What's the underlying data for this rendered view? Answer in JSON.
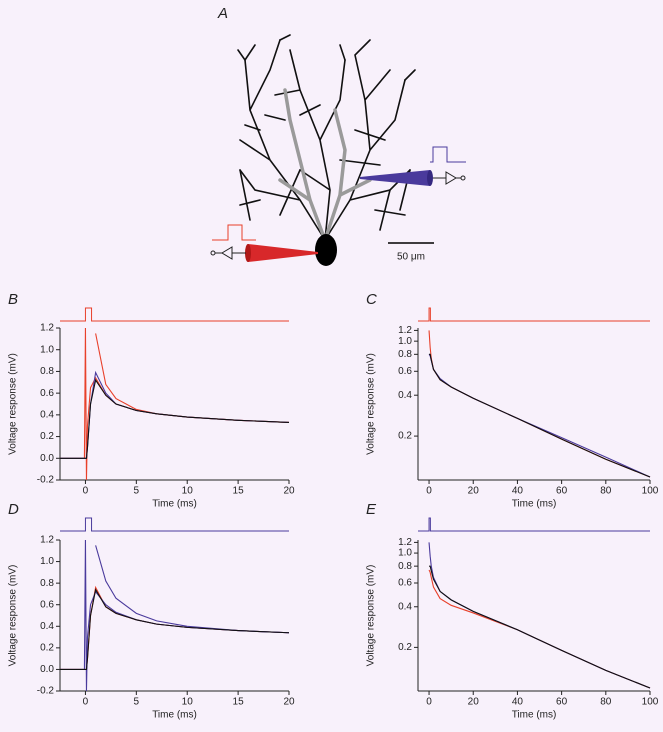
{
  "panel_a": {
    "label": "A",
    "scale_bar": "50 μm"
  },
  "chart_data": [
    {
      "type": "line",
      "label": "B",
      "ylabel": "Voltage response (mV)",
      "xlabel": "Time (ms)",
      "xlim": [
        -2.5,
        20
      ],
      "ylim": [
        -0.2,
        1.2
      ],
      "xticks": [
        0,
        5,
        10,
        15,
        20
      ],
      "yticks": [
        -0.2,
        {
          "value": 0,
          "label": "0.0"
        },
        0.2,
        0.4,
        0.6,
        0.8,
        {
          "value": 1,
          "label": "1.0"
        },
        1.2
      ],
      "log_y": false,
      "stimulus": {
        "color": "#e8402a",
        "x": [
          -2.5,
          0,
          0,
          0.6,
          0.6,
          20
        ],
        "values": [
          0,
          0,
          1,
          1,
          0,
          0
        ]
      },
      "x": [
        -2.5,
        -0.1,
        0,
        0.1,
        0.2,
        0.5,
        1,
        2,
        3,
        5,
        7,
        10,
        15,
        20
      ],
      "series": [
        {
          "color": "#e8402a",
          "values": [
            0,
            0,
            1.2,
            -0.2,
            0.3,
            0.65,
            0.74,
            0.58,
            0.5,
            0.44,
            0.41,
            0.38,
            0.35,
            0.33
          ]
        },
        {
          "color": "#e8402a",
          "values": [
            null,
            null,
            null,
            null,
            null,
            null,
            1.15,
            0.68,
            0.55,
            0.45,
            0.41,
            0.38,
            0.35,
            0.33
          ]
        },
        {
          "color": "#4a3a9c",
          "values": [
            0,
            0,
            0,
            0,
            0.1,
            0.5,
            0.79,
            0.6,
            0.5,
            0.44,
            0.41,
            0.38,
            0.35,
            0.33
          ]
        },
        {
          "color": "#111111",
          "values": [
            0,
            0,
            0,
            0,
            0.1,
            0.5,
            0.72,
            0.58,
            0.5,
            0.44,
            0.41,
            0.38,
            0.35,
            0.33
          ]
        }
      ]
    },
    {
      "type": "line",
      "label": "C",
      "ylabel": "Voltage response (mV)",
      "xlabel": "Time (ms)",
      "xlim": [
        -5,
        100
      ],
      "ylim": [
        0.095,
        1.25
      ],
      "xticks": [
        0,
        20,
        40,
        60,
        80,
        100
      ],
      "yticks": [
        0.2,
        0.4,
        0.6,
        0.8,
        {
          "value": 1,
          "label": "1.0"
        },
        1.2
      ],
      "log_y": true,
      "stimulus": {
        "color": "#e8402a",
        "x": [
          -5,
          0,
          0,
          0.6,
          0.6,
          100
        ],
        "values": [
          0,
          0,
          1,
          1,
          0,
          0
        ]
      },
      "x": [
        0,
        0.5,
        1,
        2,
        5,
        10,
        20,
        40,
        60,
        80,
        100
      ],
      "series": [
        {
          "color": "#e8402a",
          "values": [
            1.2,
            0.9,
            0.75,
            0.62,
            0.52,
            0.46,
            0.38,
            0.27,
            0.19,
            0.135,
            0.1
          ]
        },
        {
          "color": "#4a3a9c",
          "values": [
            0.8,
            0.78,
            0.72,
            0.62,
            0.53,
            0.46,
            0.38,
            0.27,
            0.195,
            0.14,
            0.1
          ]
        },
        {
          "color": "#111111",
          "values": [
            0.8,
            0.8,
            0.73,
            0.62,
            0.52,
            0.46,
            0.38,
            0.27,
            0.19,
            0.135,
            0.1
          ]
        }
      ]
    },
    {
      "type": "line",
      "label": "D",
      "ylabel": "Voltage response (mV)",
      "xlabel": "Time (ms)",
      "xlim": [
        -2.5,
        20
      ],
      "ylim": [
        -0.2,
        1.2
      ],
      "xticks": [
        0,
        5,
        10,
        15,
        20
      ],
      "yticks": [
        -0.2,
        {
          "value": 0,
          "label": "0.0"
        },
        0.2,
        0.4,
        0.6,
        0.8,
        {
          "value": 1,
          "label": "1.0"
        },
        1.2
      ],
      "log_y": false,
      "stimulus": {
        "color": "#4a3a9c",
        "x": [
          -2.5,
          0,
          0,
          0.6,
          0.6,
          20
        ],
        "values": [
          0,
          0,
          1,
          1,
          0,
          0
        ]
      },
      "x": [
        -2.5,
        -0.1,
        0,
        0.1,
        0.2,
        0.5,
        1,
        2,
        3,
        5,
        7,
        10,
        15,
        20
      ],
      "series": [
        {
          "color": "#e8402a",
          "values": [
            0,
            0,
            0,
            0,
            0.1,
            0.5,
            0.76,
            0.58,
            0.52,
            0.46,
            0.42,
            0.39,
            0.36,
            0.34
          ]
        },
        {
          "color": "#4a3a9c",
          "values": [
            0,
            0,
            1.2,
            -0.2,
            0.3,
            0.6,
            0.72,
            0.6,
            0.53,
            0.46,
            0.42,
            0.39,
            0.36,
            0.34
          ]
        },
        {
          "color": "#4a3a9c",
          "values": [
            null,
            null,
            null,
            null,
            null,
            null,
            1.15,
            0.82,
            0.66,
            0.52,
            0.45,
            0.4,
            0.36,
            0.34
          ]
        },
        {
          "color": "#111111",
          "values": [
            0,
            0,
            0,
            0,
            0.1,
            0.5,
            0.74,
            0.58,
            0.52,
            0.46,
            0.42,
            0.39,
            0.36,
            0.34
          ]
        }
      ]
    },
    {
      "type": "line",
      "label": "E",
      "ylabel": "Voltage response (mV)",
      "xlabel": "Time (ms)",
      "xlim": [
        -5,
        100
      ],
      "ylim": [
        0.095,
        1.25
      ],
      "xticks": [
        0,
        20,
        40,
        60,
        80,
        100
      ],
      "yticks": [
        0.2,
        0.4,
        0.6,
        0.8,
        {
          "value": 1,
          "label": "1.0"
        },
        1.2
      ],
      "log_y": true,
      "stimulus": {
        "color": "#4a3a9c",
        "x": [
          -5,
          0,
          0,
          0.6,
          0.6,
          100
        ],
        "values": [
          0,
          0,
          1,
          1,
          0,
          0
        ]
      },
      "x": [
        0,
        0.5,
        1,
        2,
        5,
        10,
        20,
        40,
        60,
        80,
        100
      ],
      "series": [
        {
          "color": "#e8402a",
          "values": [
            0.75,
            0.72,
            0.66,
            0.56,
            0.46,
            0.41,
            0.36,
            0.27,
            0.19,
            0.135,
            0.1
          ]
        },
        {
          "color": "#4a3a9c",
          "values": [
            1.2,
            0.95,
            0.8,
            0.66,
            0.52,
            0.45,
            0.37,
            0.27,
            0.19,
            0.135,
            0.1
          ]
        },
        {
          "color": "#111111",
          "values": [
            0.8,
            0.8,
            0.74,
            0.64,
            0.52,
            0.45,
            0.37,
            0.27,
            0.19,
            0.135,
            0.1
          ]
        }
      ]
    }
  ]
}
